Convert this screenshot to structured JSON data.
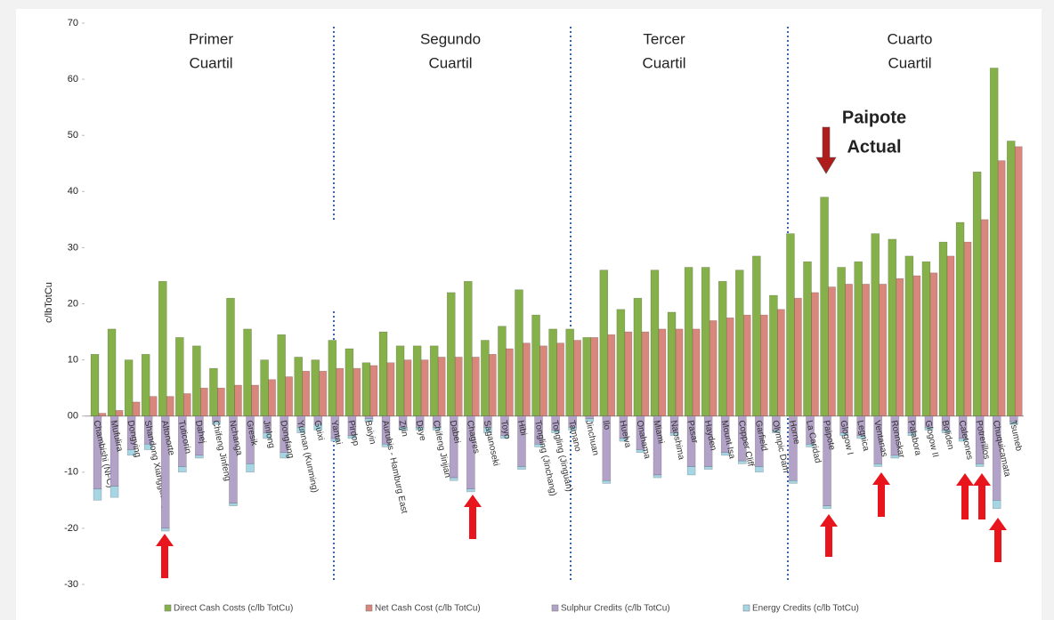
{
  "chart_data": {
    "type": "bar",
    "y_label": "c/lbTotCu",
    "quartiles": [
      [
        "Primer",
        "Cuartil"
      ],
      [
        "Segundo",
        "Cuartil"
      ],
      [
        "Tercer",
        "Cuartil"
      ],
      [
        "Cuarto",
        "Cuartil"
      ]
    ],
    "annotation": [
      "Paipote",
      "Actual"
    ],
    "categories": [
      "Chambishi (NFC)",
      "Mufulira",
      "Dongying",
      "Shandong Xiangguang",
      "Altonorte",
      "Tuticorin",
      "Dahej",
      "Chifeng Jinfeng",
      "Nchanga",
      "Gresik",
      "Jinlong",
      "Dongfang",
      "Yunnan (Kunming)",
      "Guixi",
      "Yantai",
      "Pirdop",
      "Baiyin",
      "Aurubis - Hamburg East",
      "Zijin",
      "Daye",
      "Chifeng Jinjian",
      "Dabei",
      "Chagres",
      "Saganoseki",
      "Toyo",
      "Hibi",
      "Tongling (Jinchang)",
      "Tongling (Jinguan)",
      "Tamano",
      "Jinchuan",
      "Ilo",
      "Huelva",
      "Onahama",
      "Miami",
      "Naoshima",
      "Pasar",
      "Hayden",
      "Mount Isa",
      "Copper Cliff",
      "Garfield",
      "Olympic Dam",
      "Horne",
      "La Caridad",
      "Paipote",
      "Glogow I",
      "Legnica",
      "Ventanas",
      "Ronnskar",
      "Palabora",
      "Glogow II",
      "Boliden",
      "Caletones",
      "Potrerillos",
      "Chuquicamata",
      "Tsumeb"
    ],
    "series": [
      {
        "name": "Direct Cash Costs (c/lb TotCu)",
        "color": "#86b04a",
        "values": [
          11,
          15.5,
          10,
          11,
          24,
          14,
          12.5,
          8.5,
          21,
          15.5,
          10,
          14.5,
          10.5,
          10,
          13.5,
          12,
          9.5,
          15,
          12.5,
          12.5,
          12.5,
          22,
          24,
          13.5,
          16,
          22.5,
          18,
          15.5,
          15.5,
          14,
          26,
          19,
          21,
          26,
          18.5,
          26.5,
          26.5,
          24,
          26,
          28.5,
          21.5,
          32.5,
          27.5,
          39,
          26.5,
          27.5,
          32.5,
          31.5,
          28.5,
          27.5,
          31,
          34.5,
          43.5,
          62,
          49
        ]
      },
      {
        "name": "Net Cash Cost (c/lb TotCu)",
        "color": "#d8877c",
        "values": [
          0.5,
          1,
          2.5,
          3.5,
          3.5,
          4,
          5,
          5,
          5.5,
          5.5,
          6.5,
          7,
          8,
          8,
          8.5,
          8.5,
          9,
          9.5,
          10,
          10,
          10.5,
          10.5,
          10.5,
          11,
          12,
          13,
          12.5,
          13,
          13.5,
          14,
          14.5,
          15,
          15,
          15.5,
          15.5,
          15.5,
          17,
          17.5,
          18,
          18,
          19,
          21,
          22,
          23,
          23.5,
          23.5,
          23.5,
          24.5,
          25,
          25.5,
          28.5,
          31,
          35,
          45.5,
          48
        ]
      },
      {
        "name": "Sulphur Credits (c/lb TotCu)",
        "color": "#b3a2c7",
        "values": [
          -13,
          -12.5,
          -6,
          -5,
          -20,
          -9,
          -7,
          -1,
          -15.5,
          -8.5,
          -3,
          -6.5,
          -2,
          -1.5,
          -4,
          -3.5,
          -0.5,
          -5,
          -2,
          -2,
          -2,
          -11,
          -13,
          -2,
          -3.5,
          -9,
          -5,
          -2.5,
          -2,
          -0.5,
          -11.5,
          -4,
          -6,
          -10.5,
          -3,
          -9,
          -9,
          -6.5,
          -8,
          -9,
          -2.5,
          -11.5,
          -5,
          -16,
          -3,
          -3.5,
          -8.5,
          -7,
          -3,
          -2,
          -2.5,
          -4,
          -8.5,
          -15,
          -1
        ]
      },
      {
        "name": "Energy Credits (c/lb TotCu)",
        "color": "#a6d6e4",
        "values": [
          -2,
          -2,
          -1,
          -1,
          -0.5,
          -1,
          -0.5,
          -0.5,
          -0.5,
          -1.5,
          -1,
          -1,
          -1,
          -1,
          -0.5,
          -0.5,
          -0.5,
          -0.5,
          -0.5,
          -0.5,
          -0.5,
          -0.5,
          -0.5,
          -1,
          -0.5,
          -0.5,
          -0.5,
          -0.5,
          -0.5,
          -0.5,
          -0.5,
          -0.5,
          -0.5,
          -0.5,
          -0.5,
          -1.5,
          -0.5,
          -0.5,
          -0.5,
          -1,
          -0.5,
          -0.5,
          -0.5,
          -0.5,
          -0.5,
          -0.5,
          -0.5,
          -0.5,
          -0.5,
          -0.5,
          -0.5,
          -0.5,
          -0.5,
          -1.5,
          -0.5
        ]
      }
    ],
    "ylim": [
      -30,
      70
    ],
    "yticks": [
      -30,
      -20,
      -10,
      {
        "value": 0,
        "label": "00"
      },
      10,
      20,
      30,
      40,
      50,
      60,
      70
    ]
  }
}
